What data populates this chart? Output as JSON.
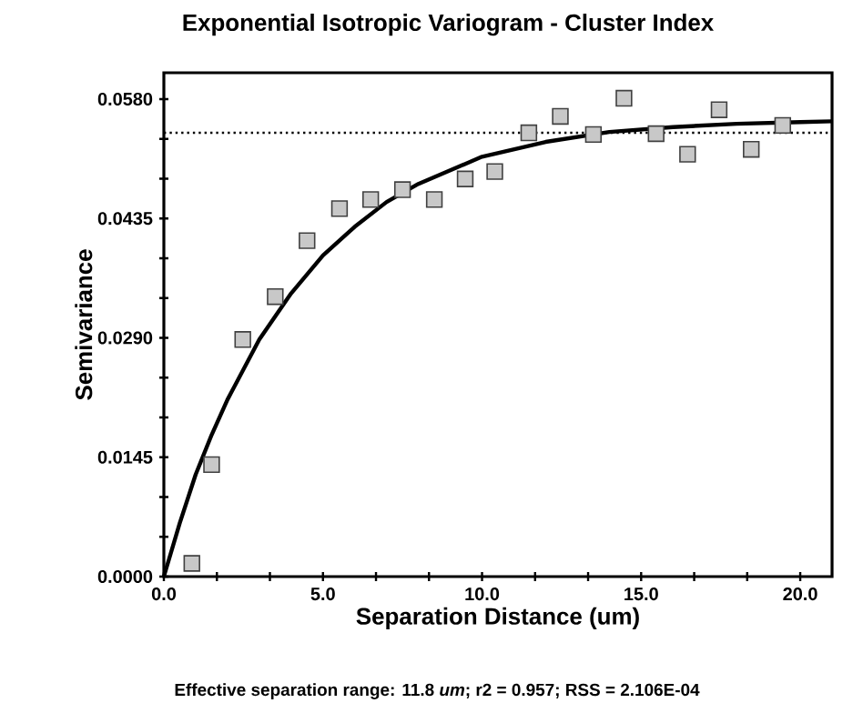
{
  "chart_data": {
    "type": "scatter",
    "title": "Exponential Isotropic Variogram - Cluster Index",
    "xlabel": "Separation Distance (um)",
    "ylabel": "Semivariance",
    "annotations": [
      "Effective separation range: 11.8 *um*; r2 = 0.957; RSS = 2.106E-04"
    ],
    "xlim": [
      0,
      21
    ],
    "ylim": [
      0,
      0.0612
    ],
    "xticks": [
      {
        "value": 0,
        "label": "0.0"
      },
      {
        "value": 1.667,
        "label": null
      },
      {
        "value": 3.333,
        "label": null
      },
      {
        "value": 5,
        "label": "5.0"
      },
      {
        "value": 6.667,
        "label": null
      },
      {
        "value": 8.333,
        "label": null
      },
      {
        "value": 10,
        "label": "10.0"
      },
      {
        "value": 11.667,
        "label": null
      },
      {
        "value": 13.333,
        "label": null
      },
      {
        "value": 15,
        "label": "15.0"
      },
      {
        "value": 16.667,
        "label": null
      },
      {
        "value": 18.333,
        "label": null
      },
      {
        "value": 20,
        "label": "20.0"
      }
    ],
    "yticks": [
      {
        "value": 0,
        "label": "0.0000"
      },
      {
        "value": 0.00483,
        "label": null
      },
      {
        "value": 0.00967,
        "label": null
      },
      {
        "value": 0.0145,
        "label": "0.0145"
      },
      {
        "value": 0.01933,
        "label": null
      },
      {
        "value": 0.02417,
        "label": null
      },
      {
        "value": 0.029,
        "label": "0.0290"
      },
      {
        "value": 0.03383,
        "label": null
      },
      {
        "value": 0.03867,
        "label": null
      },
      {
        "value": 0.0435,
        "label": "0.0435"
      },
      {
        "value": 0.04833,
        "label": null
      },
      {
        "value": 0.05317,
        "label": null
      },
      {
        "value": 0.058,
        "label": "0.0580"
      }
    ],
    "grid": false,
    "ref_lines": [
      {
        "axis": "y",
        "value": 0.0539,
        "color": "#000000",
        "line_style": "dotted"
      }
    ],
    "series": [
      {
        "marker": "square",
        "color": "#c8c8c8",
        "x": [
          0.88,
          1.5,
          2.48,
          3.5,
          4.5,
          5.52,
          6.5,
          7.5,
          8.5,
          9.47,
          10.4,
          11.47,
          12.46,
          13.5,
          14.46,
          15.47,
          16.46,
          17.45,
          18.46,
          19.45
        ],
        "values": [
          0.0016,
          0.0136,
          0.0288,
          0.034,
          0.0408,
          0.0447,
          0.0458,
          0.047,
          0.0458,
          0.0483,
          0.0492,
          0.0539,
          0.0559,
          0.0537,
          0.0581,
          0.0538,
          0.0513,
          0.0567,
          0.0519,
          0.0548
        ]
      },
      {
        "type": "line",
        "marker": "none",
        "line_style": "solid",
        "color": "#000000",
        "x": [
          0,
          0.5,
          1,
          1.5,
          2,
          3,
          4,
          5,
          6,
          7,
          8,
          10,
          12,
          14,
          16,
          18,
          20,
          21
        ],
        "values": [
          0,
          0.0065,
          0.0124,
          0.0172,
          0.0215,
          0.0288,
          0.0344,
          0.039,
          0.0425,
          0.0455,
          0.0477,
          0.051,
          0.0528,
          0.054,
          0.0546,
          0.055,
          0.0552,
          0.0553
        ]
      }
    ]
  }
}
